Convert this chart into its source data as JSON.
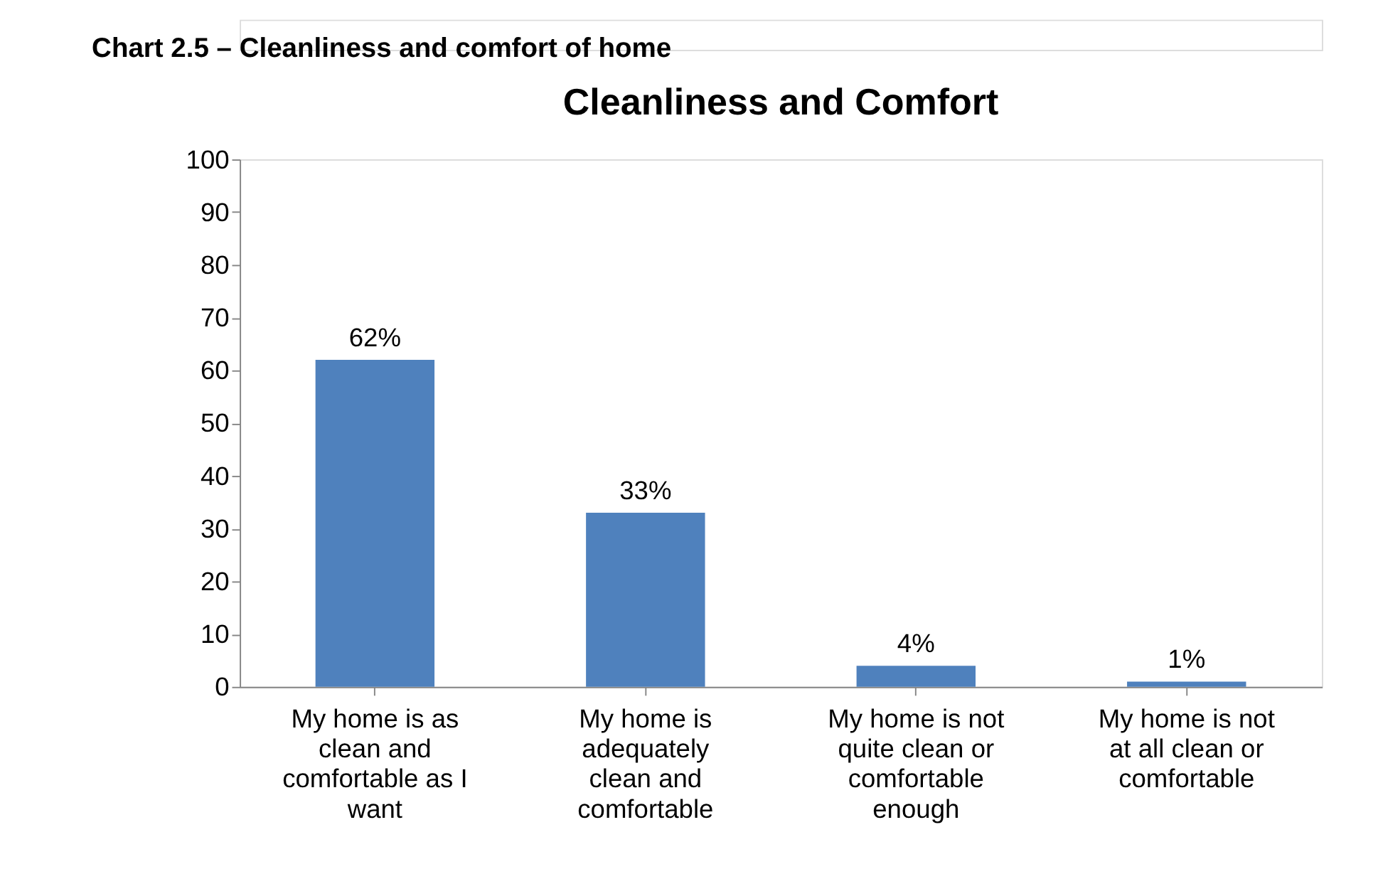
{
  "chart_data": {
    "type": "bar",
    "title": "Cleanliness and Comfort",
    "annotations": [
      "Chart 2.5 – Cleanliness and comfort of home"
    ],
    "categories": [
      "My home is as\nclean and\ncomfortable as I\nwant",
      "My home is\nadequately\nclean and\ncomfortable",
      "My home is not\nquite clean or\ncomfortable\nenough",
      "My home is not\nat all clean or\ncomfortable"
    ],
    "values": [
      62,
      33,
      4,
      1
    ],
    "value_labels": [
      "62%",
      "33%",
      "4%",
      "1%"
    ],
    "color": "#4f81bd",
    "ylim": [
      0,
      100
    ],
    "yticks": [
      0,
      10,
      20,
      30,
      40,
      50,
      60,
      70,
      80,
      90,
      100
    ],
    "grid": false
  }
}
